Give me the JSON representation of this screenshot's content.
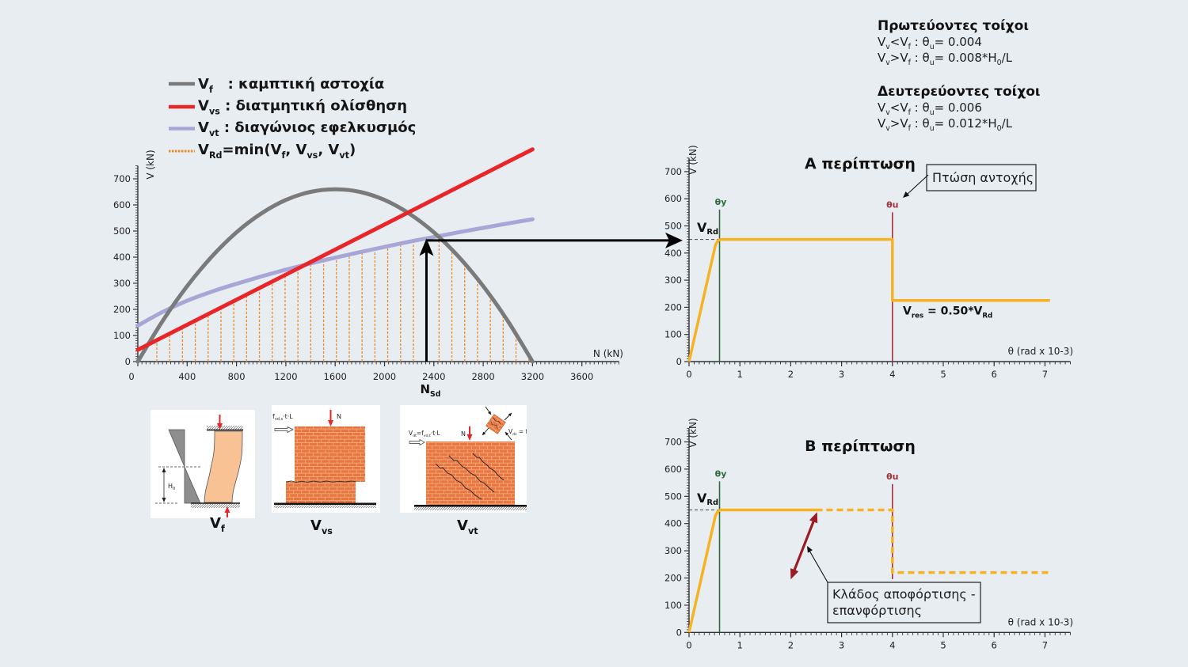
{
  "legend": {
    "items": [
      {
        "color": "#7a7a7a",
        "style": "solid",
        "parts": [
          {
            "t": "V"
          },
          {
            "t": "f",
            "sub": true
          },
          {
            "t": "   : καμπτική αστοχία"
          }
        ]
      },
      {
        "color": "#e8262a",
        "style": "solid",
        "parts": [
          {
            "t": "V"
          },
          {
            "t": "vs",
            "sub": true
          },
          {
            "t": " : διατμητική ολίσθηση"
          }
        ]
      },
      {
        "color": "#a7a6d6",
        "style": "solid",
        "parts": [
          {
            "t": "V"
          },
          {
            "t": "vt",
            "sub": true
          },
          {
            "t": " : διαγώνιος εφελκυσμός"
          }
        ]
      },
      {
        "color": "#f08a2c",
        "style": "dotted",
        "parts": [
          {
            "t": "V"
          },
          {
            "t": "Rd",
            "sub": true
          },
          {
            "t": "=min(V"
          },
          {
            "t": "f",
            "sub": true
          },
          {
            "t": ", V"
          },
          {
            "t": "vs",
            "sub": true
          },
          {
            "t": ", V"
          },
          {
            "t": "vt",
            "sub": true
          },
          {
            "t": ")"
          }
        ]
      }
    ]
  },
  "rules": {
    "primary": {
      "title": "Πρωτεύοντες τοίχοι",
      "lines": [
        [
          {
            "t": "V"
          },
          {
            "t": "v",
            "sub": true
          },
          {
            "t": "<V"
          },
          {
            "t": "f",
            "sub": true
          },
          {
            "t": " : θ"
          },
          {
            "t": "u",
            "sub": true
          },
          {
            "t": "= 0.004"
          }
        ],
        [
          {
            "t": "V"
          },
          {
            "t": "v",
            "sub": true
          },
          {
            "t": ">V"
          },
          {
            "t": "f",
            "sub": true
          },
          {
            "t": " : θ"
          },
          {
            "t": "u",
            "sub": true
          },
          {
            "t": "= 0.008*H"
          },
          {
            "t": "0",
            "sub": true
          },
          {
            "t": "/L"
          }
        ]
      ]
    },
    "secondary": {
      "title": "Δευτερεύοντες τοίχοι",
      "lines": [
        [
          {
            "t": "V"
          },
          {
            "t": "v",
            "sub": true
          },
          {
            "t": "<V"
          },
          {
            "t": "f",
            "sub": true
          },
          {
            "t": " : θ"
          },
          {
            "t": "u",
            "sub": true
          },
          {
            "t": "= 0.006"
          }
        ],
        [
          {
            "t": "V"
          },
          {
            "t": "v",
            "sub": true
          },
          {
            "t": ">V"
          },
          {
            "t": "f",
            "sub": true
          },
          {
            "t": " : θ"
          },
          {
            "t": "u",
            "sub": true
          },
          {
            "t": "= 0.012*H"
          },
          {
            "t": "0",
            "sub": true
          },
          {
            "t": "/L"
          }
        ]
      ]
    }
  },
  "chart_data": [
    {
      "type": "line",
      "title": "",
      "xlabel": "N (kN)",
      "ylabel": "V (kN)",
      "xlim": [
        0,
        3900
      ],
      "ylim": [
        0,
        750
      ],
      "xticks": [
        0,
        400,
        800,
        1200,
        1600,
        2000,
        2400,
        2800,
        3200,
        3600
      ],
      "yticks": [
        0,
        100,
        200,
        300,
        400,
        500,
        600,
        700
      ],
      "grid": false,
      "legend_position": "top-left",
      "series": [
        {
          "color": "#7a7a7a",
          "interpolation": "smooth",
          "points": [
            [
              0,
              0
            ],
            [
              200,
              155
            ],
            [
              400,
              289
            ],
            [
              600,
              402
            ],
            [
              800,
              495
            ],
            [
              1000,
              567
            ],
            [
              1200,
              619
            ],
            [
              1400,
              650
            ],
            [
              1600,
              660
            ],
            [
              1800,
              650
            ],
            [
              2000,
              619
            ],
            [
              2200,
              567
            ],
            [
              2400,
              495
            ],
            [
              2600,
              402
            ],
            [
              2800,
              289
            ],
            [
              3000,
              155
            ],
            [
              3200,
              0
            ]
          ]
        },
        {
          "color": "#e8262a",
          "interpolation": "linear",
          "points": [
            [
              0,
              45
            ],
            [
              3200,
              813
            ]
          ]
        },
        {
          "color": "#a7a6d6",
          "interpolation": "smooth",
          "points": [
            [
              0,
              138
            ],
            [
              200,
              190
            ],
            [
              400,
              233
            ],
            [
              600,
              268
            ],
            [
              800,
              298
            ],
            [
              1000,
              326
            ],
            [
              1200,
              352
            ],
            [
              1400,
              376
            ],
            [
              1600,
              398
            ],
            [
              1800,
              419
            ],
            [
              2000,
              439
            ],
            [
              2200,
              459
            ],
            [
              2400,
              477
            ],
            [
              2600,
              495
            ],
            [
              2800,
              512
            ],
            [
              3000,
              529
            ],
            [
              3200,
              545
            ]
          ]
        }
      ],
      "vrd_lines": {
        "color": "#f08a2c",
        "start": 154,
        "step": 104,
        "count": 30
      },
      "nsd": {
        "value": 2340,
        "label": [
          {
            "t": "N"
          },
          {
            "t": "Sd",
            "sub": true
          }
        ]
      }
    },
    {
      "type": "line",
      "title": "Α περίπτωση",
      "xlabel": "θ (rad x 10-3)",
      "ylabel": "V (kN)",
      "xlim": [
        0,
        7.5
      ],
      "ylim": [
        0,
        750
      ],
      "xticks": [
        0,
        1,
        2,
        3,
        4,
        5,
        6,
        7
      ],
      "yticks": [
        0,
        100,
        200,
        300,
        400,
        500,
        600,
        700
      ],
      "grid": false,
      "series": [
        {
          "color": "#f5b324",
          "style": "solid",
          "points": [
            [
              0,
              0
            ],
            [
              0.52,
              430
            ],
            [
              0.57,
              446
            ],
            [
              0.63,
              450
            ],
            [
              4.0,
              450
            ],
            [
              4.0,
              225
            ],
            [
              7.1,
              225
            ]
          ]
        }
      ],
      "markers": [
        {
          "label": "θy",
          "x": 0.6,
          "from": 0,
          "to": 560,
          "color": "#2e6b3a"
        },
        {
          "label": "θu",
          "x": 4.0,
          "from": 0,
          "to": 550,
          "color": "#a3333b"
        }
      ],
      "vrd": {
        "value": 450,
        "label": [
          {
            "t": "V"
          },
          {
            "t": "Rd",
            "sub": true
          }
        ]
      },
      "annotations": {
        "strength_drop": "Πτώση αντοχής",
        "residual": [
          {
            "t": "V"
          },
          {
            "t": "res",
            "sub": true
          },
          {
            "t": " = 0.50*V"
          },
          {
            "t": "Rd",
            "sub": true
          }
        ]
      }
    },
    {
      "type": "line",
      "title": "Β περίπτωση",
      "xlabel": "θ (rad x 10-3)",
      "ylabel": "V (kN)",
      "xlim": [
        0,
        7.5
      ],
      "ylim": [
        0,
        750
      ],
      "xticks": [
        0,
        1,
        2,
        3,
        4,
        5,
        6,
        7
      ],
      "yticks": [
        0,
        100,
        200,
        300,
        400,
        500,
        600,
        700
      ],
      "grid": false,
      "series": [
        {
          "color": "#f5b324",
          "style": "solid",
          "points": [
            [
              0,
              0
            ],
            [
              0.52,
              430
            ],
            [
              0.57,
              446
            ],
            [
              0.63,
              450
            ],
            [
              2.5,
              450
            ]
          ]
        },
        {
          "color": "#f5b324",
          "style": "dashed",
          "points": [
            [
              2.5,
              450
            ],
            [
              4.0,
              450
            ],
            [
              4.0,
              220
            ],
            [
              7.1,
              220
            ]
          ]
        }
      ],
      "markers": [
        {
          "label": "θy",
          "x": 0.6,
          "from": 0,
          "to": 555,
          "color": "#2e6b3a"
        },
        {
          "label": "θu",
          "x": 4.0,
          "from": 196,
          "to": 545,
          "color": "#a3333b"
        }
      ],
      "vrd": {
        "value": 450,
        "label": [
          {
            "t": "V"
          },
          {
            "t": "Rd",
            "sub": true
          }
        ]
      },
      "unload_reload": {
        "color": "#9b1c22",
        "points": [
          [
            2.0,
            195
          ],
          [
            2.52,
            442
          ]
        ]
      },
      "annotations": {
        "unload_reload": [
          "Κλάδος αποφόρτισης -",
          "επανφόρτισης"
        ]
      }
    }
  ],
  "illustrations": {
    "flexure": {
      "caption": [
        {
          "t": "V"
        },
        {
          "t": "f",
          "sub": true
        }
      ],
      "h0": [
        {
          "t": "H"
        },
        {
          "t": "0",
          "sub": true
        }
      ]
    },
    "sliding": {
      "caption": [
        {
          "t": "V"
        },
        {
          "t": "vs",
          "sub": true
        }
      ],
      "force": [
        {
          "t": "f"
        },
        {
          "t": "vd,s",
          "sub": true
        },
        {
          "t": "·t·L"
        }
      ],
      "axial": "N"
    },
    "diagonal": {
      "caption": [
        {
          "t": "V"
        },
        {
          "t": "vt",
          "sub": true
        }
      ],
      "force": [
        {
          "t": "V"
        },
        {
          "t": "dt",
          "sub": true
        },
        {
          "t": "=f"
        },
        {
          "t": "vd,t",
          "sub": true
        },
        {
          "t": "·t·L"
        }
      ],
      "axial": "N",
      "element": [
        {
          "t": "V"
        },
        {
          "t": "ds",
          "sub": true
        },
        {
          "t": " = f"
        }
      ]
    }
  }
}
